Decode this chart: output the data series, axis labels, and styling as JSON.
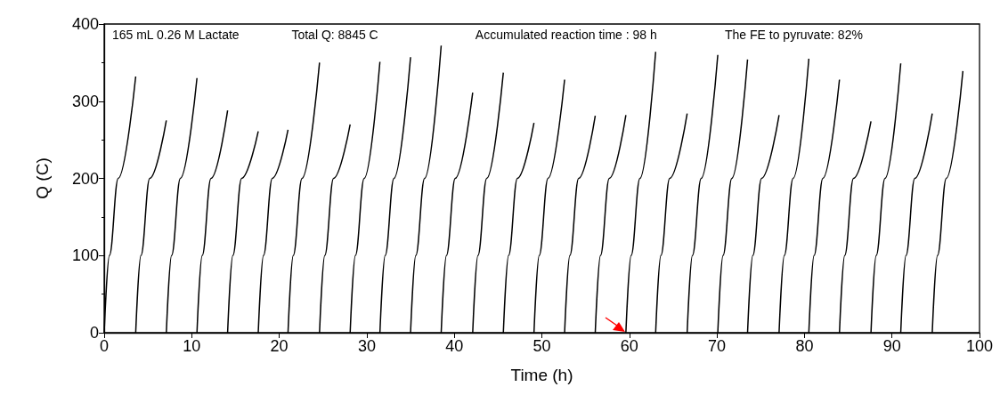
{
  "chart_data": {
    "type": "line",
    "xlabel": "Time (h)",
    "ylabel": "Q (C)",
    "annotations": [
      "165 mL 0.26 M Lactate",
      "Total Q: 8845 C",
      "Accumulated reaction time : 98 h",
      "The FE to pyruvate: 82%"
    ],
    "xlim": [
      0,
      100
    ],
    "xticks": [
      0,
      10,
      20,
      30,
      40,
      50,
      60,
      70,
      80,
      90,
      100
    ],
    "ylim": [
      0,
      400
    ],
    "yticks": [
      0,
      100,
      200,
      300,
      400
    ],
    "grid": false,
    "marker": "none",
    "line_style": "solid",
    "series": [
      {
        "color": "#000000",
        "x": [
          0,
          0.6,
          1.6,
          3.6
        ],
        "values": [
          0,
          100,
          200,
          332
        ]
      },
      {
        "color": "#000000",
        "x": [
          3.6,
          4.2,
          5.2,
          7.1
        ],
        "values": [
          0,
          100,
          200,
          275
        ]
      },
      {
        "color": "#000000",
        "x": [
          7.1,
          7.7,
          8.7,
          10.6
        ],
        "values": [
          0,
          100,
          200,
          330
        ]
      },
      {
        "color": "#000000",
        "x": [
          10.6,
          11.2,
          12.2,
          14.1
        ],
        "values": [
          0,
          100,
          200,
          288
        ]
      },
      {
        "color": "#000000",
        "x": [
          14.1,
          14.7,
          15.7,
          17.6
        ],
        "values": [
          0,
          100,
          200,
          261
        ]
      },
      {
        "color": "#000000",
        "x": [
          17.6,
          18.2,
          19.2,
          21.0
        ],
        "values": [
          0,
          100,
          200,
          263
        ]
      },
      {
        "color": "#000000",
        "x": [
          21.0,
          21.6,
          22.6,
          24.6
        ],
        "values": [
          0,
          100,
          200,
          350
        ]
      },
      {
        "color": "#000000",
        "x": [
          24.6,
          25.2,
          26.2,
          28.1
        ],
        "values": [
          0,
          100,
          200,
          270
        ]
      },
      {
        "color": "#000000",
        "x": [
          28.1,
          28.7,
          29.7,
          31.5
        ],
        "values": [
          0,
          100,
          200,
          351
        ]
      },
      {
        "color": "#000000",
        "x": [
          31.5,
          32.1,
          33.1,
          35.0
        ],
        "values": [
          0,
          100,
          200,
          357
        ]
      },
      {
        "color": "#000000",
        "x": [
          35.0,
          35.6,
          36.6,
          38.5
        ],
        "values": [
          0,
          100,
          200,
          372
        ]
      },
      {
        "color": "#000000",
        "x": [
          38.5,
          39.1,
          40.1,
          42.1
        ],
        "values": [
          0,
          100,
          200,
          311
        ]
      },
      {
        "color": "#000000",
        "x": [
          42.1,
          42.7,
          43.7,
          45.6
        ],
        "values": [
          0,
          100,
          200,
          337
        ]
      },
      {
        "color": "#000000",
        "x": [
          45.6,
          46.2,
          47.2,
          49.1
        ],
        "values": [
          0,
          100,
          200,
          272
        ]
      },
      {
        "color": "#000000",
        "x": [
          49.1,
          49.7,
          50.7,
          52.6
        ],
        "values": [
          0,
          100,
          200,
          328
        ]
      },
      {
        "color": "#000000",
        "x": [
          52.6,
          53.2,
          54.2,
          56.1
        ],
        "values": [
          0,
          100,
          200,
          281
        ]
      },
      {
        "color": "#000000",
        "x": [
          56.1,
          56.7,
          57.7,
          59.6
        ],
        "values": [
          0,
          100,
          200,
          282
        ]
      },
      {
        "color": "#000000",
        "x": [
          59.6,
          60.2,
          61.2,
          63.0
        ],
        "values": [
          0,
          100,
          200,
          364
        ]
      },
      {
        "color": "#000000",
        "x": [
          63.0,
          63.6,
          64.6,
          66.6
        ],
        "values": [
          0,
          100,
          200,
          284
        ]
      },
      {
        "color": "#000000",
        "x": [
          66.6,
          67.2,
          68.2,
          70.1
        ],
        "values": [
          0,
          100,
          200,
          360
        ]
      },
      {
        "color": "#000000",
        "x": [
          70.1,
          70.7,
          71.7,
          73.5
        ],
        "values": [
          0,
          100,
          200,
          354
        ]
      },
      {
        "color": "#000000",
        "x": [
          73.5,
          74.1,
          75.1,
          77.1
        ],
        "values": [
          0,
          100,
          200,
          282
        ]
      },
      {
        "color": "#000000",
        "x": [
          77.1,
          77.7,
          78.7,
          80.5
        ],
        "values": [
          0,
          100,
          200,
          355
        ]
      },
      {
        "color": "#000000",
        "x": [
          80.5,
          81.1,
          82.1,
          84.0
        ],
        "values": [
          0,
          100,
          200,
          328
        ]
      },
      {
        "color": "#000000",
        "x": [
          84.0,
          84.6,
          85.6,
          87.6
        ],
        "values": [
          0,
          100,
          200,
          274
        ]
      },
      {
        "color": "#000000",
        "x": [
          87.6,
          88.2,
          89.2,
          91.0
        ],
        "values": [
          0,
          100,
          200,
          349
        ]
      },
      {
        "color": "#000000",
        "x": [
          91.0,
          91.6,
          92.6,
          94.6
        ],
        "values": [
          0,
          100,
          200,
          284
        ]
      },
      {
        "color": "#000000",
        "x": [
          94.6,
          95.2,
          96.2,
          98.1
        ],
        "values": [
          0,
          100,
          200,
          339
        ]
      }
    ]
  }
}
